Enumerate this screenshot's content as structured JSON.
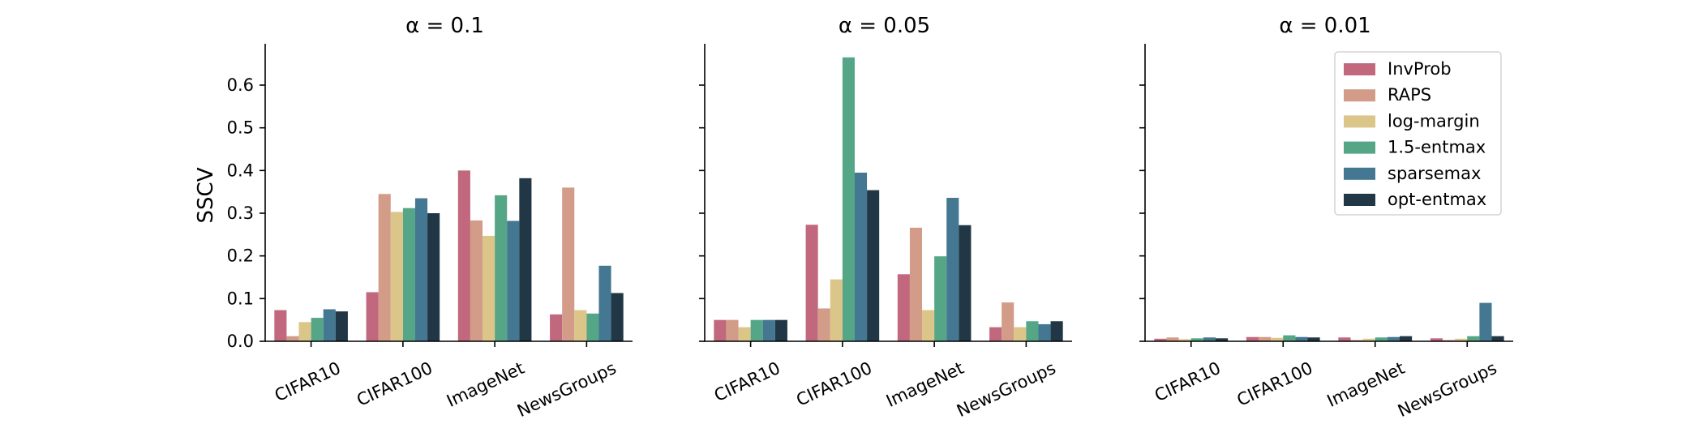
{
  "chart_data": {
    "type": "bar",
    "ylabel": "SSCV",
    "ylim": [
      0,
      0.7
    ],
    "yticks": [
      "0.0",
      "0.1",
      "0.2",
      "0.3",
      "0.4",
      "0.5",
      "0.6"
    ],
    "categories": [
      "CIFAR10",
      "CIFAR100",
      "ImageNet",
      "NewsGroups"
    ],
    "grid": false,
    "legend_position": "top-right of third panel",
    "series_names": [
      "InvProb",
      "RAPS",
      "log-margin",
      "1.5-entmax",
      "sparsemax",
      "opt-entmax"
    ],
    "colors": [
      "#c1687e",
      "#d29c88",
      "#dbc589",
      "#55a686",
      "#447791",
      "#213745"
    ],
    "panels": [
      {
        "title": "α = 0.1",
        "series": [
          {
            "name": "InvProb",
            "values": [
              0.073,
              0.115,
              0.4,
              0.063
            ]
          },
          {
            "name": "RAPS",
            "values": [
              0.012,
              0.345,
              0.283,
              0.36
            ]
          },
          {
            "name": "log-margin",
            "values": [
              0.045,
              0.303,
              0.247,
              0.073
            ]
          },
          {
            "name": "1.5-entmax",
            "values": [
              0.055,
              0.312,
              0.342,
              0.065
            ]
          },
          {
            "name": "sparsemax",
            "values": [
              0.075,
              0.335,
              0.282,
              0.177
            ]
          },
          {
            "name": "opt-entmax",
            "values": [
              0.07,
              0.3,
              0.382,
              0.113
            ]
          }
        ]
      },
      {
        "title": "α = 0.05",
        "series": [
          {
            "name": "InvProb",
            "values": [
              0.05,
              0.273,
              0.157,
              0.033
            ]
          },
          {
            "name": "RAPS",
            "values": [
              0.05,
              0.077,
              0.266,
              0.091
            ]
          },
          {
            "name": "log-margin",
            "values": [
              0.033,
              0.145,
              0.073,
              0.033
            ]
          },
          {
            "name": "1.5-entmax",
            "values": [
              0.05,
              0.665,
              0.199,
              0.047
            ]
          },
          {
            "name": "sparsemax",
            "values": [
              0.05,
              0.395,
              0.336,
              0.04
            ]
          },
          {
            "name": "opt-entmax",
            "values": [
              0.05,
              0.354,
              0.272,
              0.047
            ]
          }
        ]
      },
      {
        "title": "α = 0.01",
        "series": [
          {
            "name": "InvProb",
            "values": [
              0.006,
              0.01,
              0.009,
              0.007
            ]
          },
          {
            "name": "RAPS",
            "values": [
              0.009,
              0.01,
              0.003,
              0.003
            ]
          },
          {
            "name": "log-margin",
            "values": [
              0.005,
              0.008,
              0.006,
              0.006
            ]
          },
          {
            "name": "1.5-entmax",
            "values": [
              0.007,
              0.014,
              0.009,
              0.012
            ]
          },
          {
            "name": "sparsemax",
            "values": [
              0.009,
              0.01,
              0.01,
              0.09
            ]
          },
          {
            "name": "opt-entmax",
            "values": [
              0.007,
              0.009,
              0.012,
              0.012
            ]
          }
        ]
      }
    ]
  }
}
